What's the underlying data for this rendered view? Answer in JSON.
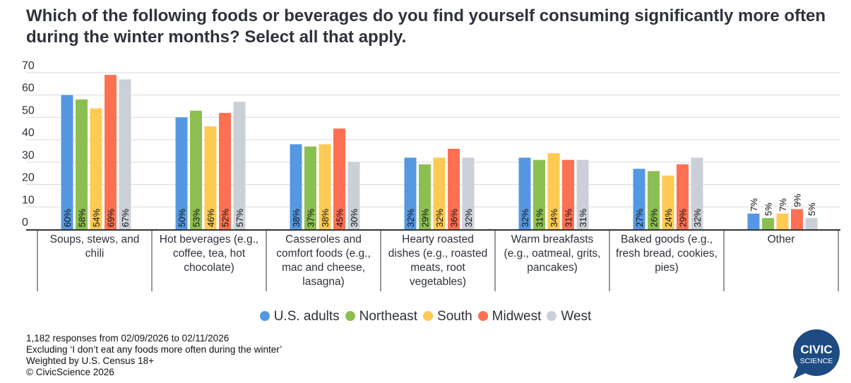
{
  "title": "Which of the following foods or beverages do you find yourself consuming significantly more often during the winter months? Select all that apply.",
  "footer": {
    "line1": "1,182 responses from 02/09/2026 to 02/11/2026",
    "line2": "Excluding ‘I don’t eat any foods more often during the winter’",
    "line3": "Weighted by U.S. Census 18+",
    "line4": "© CivicScience 2026"
  },
  "logo": {
    "line1": "CIVIC",
    "line2": "SCIENCE",
    "color": "#1d4b82"
  },
  "chart_data": {
    "type": "bar",
    "title": "Which of the following foods or beverages do you find yourself consuming significantly more often during the winter months? Select all that apply.",
    "xlabel": "",
    "ylabel": "",
    "ylim": [
      0,
      70
    ],
    "yticks": [
      0,
      10,
      20,
      30,
      40,
      50,
      60,
      70
    ],
    "grid": true,
    "legend_position": "bottom",
    "categories": [
      [
        "Soups, stews, and",
        "chili"
      ],
      [
        "Hot beverages (e.g.,",
        "coffee, tea, hot",
        "chocolate)"
      ],
      [
        "Casseroles and",
        "comfort foods (e.g.,",
        "mac and cheese,",
        "lasagna)"
      ],
      [
        "Hearty roasted",
        "dishes (e.g., roasted",
        "meats, root",
        "vegetables)"
      ],
      [
        "Warm breakfasts",
        "(e.g., oatmeal, grits,",
        "pancakes)"
      ],
      [
        "Baked goods (e.g.,",
        "fresh bread, cookies,",
        "pies)"
      ],
      [
        "Other"
      ]
    ],
    "series": [
      {
        "name": "U.S. adults",
        "color": "#5598e2",
        "values": [
          60,
          50,
          38,
          32,
          32,
          27,
          7
        ]
      },
      {
        "name": "Northeast",
        "color": "#8cbf51",
        "values": [
          58,
          53,
          37,
          29,
          31,
          26,
          5
        ]
      },
      {
        "name": "South",
        "color": "#fdca54",
        "values": [
          54,
          46,
          38,
          32,
          34,
          24,
          7
        ]
      },
      {
        "name": "Midwest",
        "color": "#fe7052",
        "values": [
          69,
          52,
          45,
          36,
          31,
          29,
          9
        ]
      },
      {
        "name": "West",
        "color": "#cbd0d8",
        "values": [
          67,
          57,
          30,
          32,
          31,
          32,
          5
        ]
      }
    ],
    "value_suffix": "%"
  }
}
